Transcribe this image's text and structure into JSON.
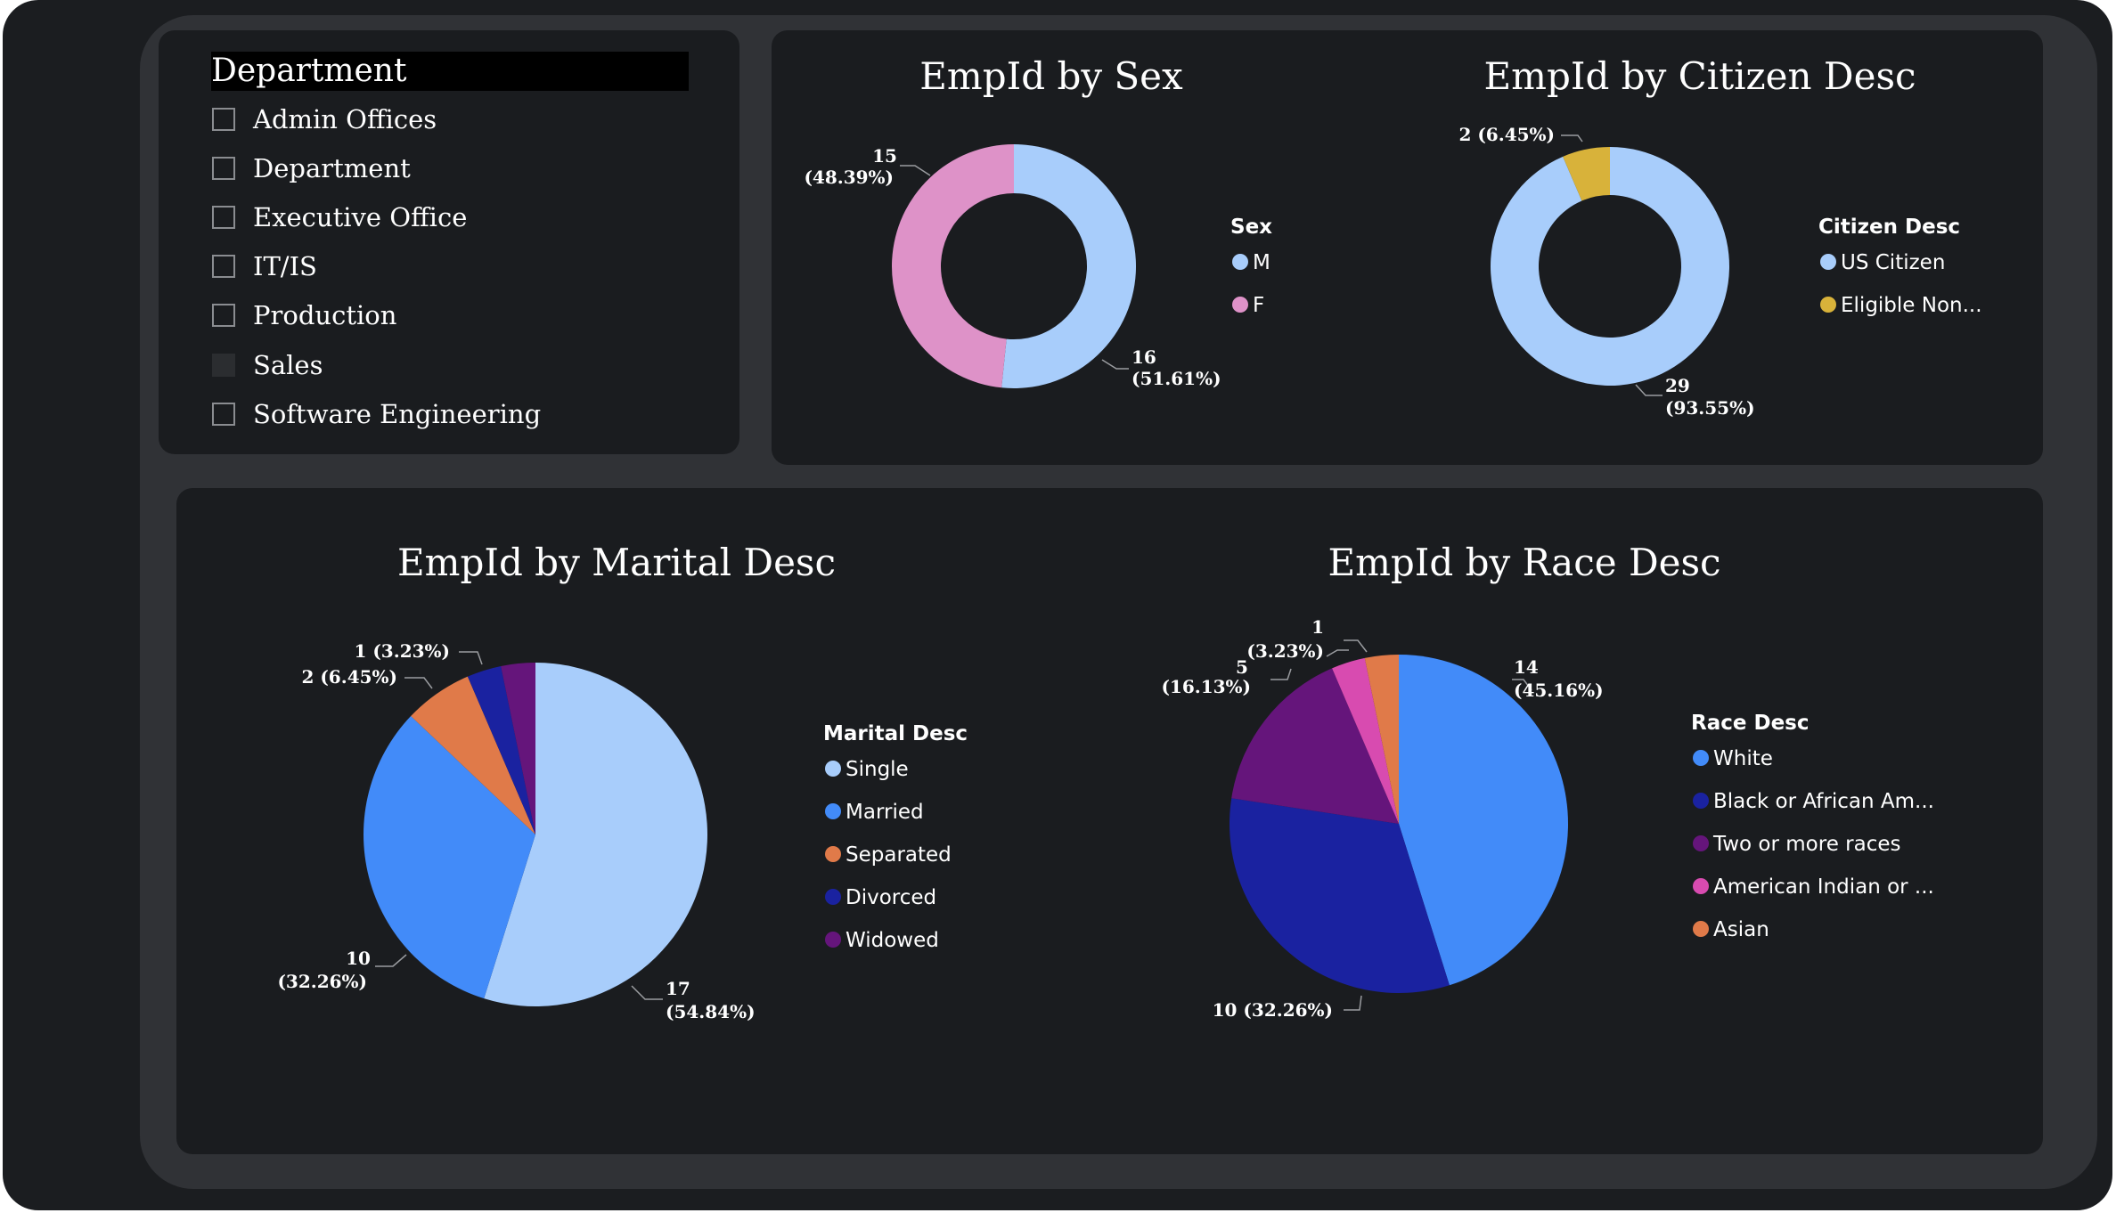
{
  "slicer": {
    "title": "Department",
    "items": [
      {
        "label": "Admin Offices",
        "state": "unchecked"
      },
      {
        "label": "Department",
        "state": "unchecked"
      },
      {
        "label": "Executive Office",
        "state": "unchecked"
      },
      {
        "label": "IT/IS",
        "state": "unchecked"
      },
      {
        "label": "Production",
        "state": "unchecked"
      },
      {
        "label": "Sales",
        "state": "filled"
      },
      {
        "label": "Software Engineering",
        "state": "unchecked"
      }
    ]
  },
  "chart_data": [
    {
      "id": "sex",
      "type": "pie",
      "variant": "donut",
      "title": "EmpId by Sex",
      "legend_title": "Sex",
      "categories": [
        "M",
        "F"
      ],
      "values": [
        16,
        15
      ],
      "colors": [
        "#a8cdfb",
        "#de92c8"
      ],
      "data_labels": [
        [
          "16",
          "(51.61%)"
        ],
        [
          "15",
          "(48.39%)"
        ]
      ]
    },
    {
      "id": "citizen",
      "type": "pie",
      "variant": "donut",
      "title": "EmpId by Citizen Desc",
      "legend_title": "Citizen Desc",
      "categories": [
        "US Citizen",
        "Eligible Non..."
      ],
      "values": [
        29,
        2
      ],
      "colors": [
        "#a8cdfb",
        "#d8b23a"
      ],
      "data_labels": [
        [
          "29",
          "(93.55%)"
        ],
        [
          "2 (6.45%)"
        ]
      ]
    },
    {
      "id": "marital",
      "type": "pie",
      "title": "EmpId by Marital Desc",
      "legend_title": "Marital Desc",
      "categories": [
        "Single",
        "Married",
        "Separated",
        "Divorced",
        "Widowed"
      ],
      "values": [
        17,
        10,
        2,
        1,
        1
      ],
      "colors": [
        "#a8cdfb",
        "#428bf9",
        "#e07a49",
        "#1a22a0",
        "#65157b"
      ],
      "data_labels": [
        [
          "17",
          "(54.84%)"
        ],
        [
          "10",
          "(32.26%)"
        ],
        [
          "2 (6.45%)"
        ],
        [
          "1 (3.23%)"
        ],
        []
      ]
    },
    {
      "id": "race",
      "type": "pie",
      "title": "EmpId by Race Desc",
      "legend_title": "Race Desc",
      "categories": [
        "White",
        "Black or African Am...",
        "Two or more races",
        "American Indian or ...",
        "Asian"
      ],
      "values": [
        14,
        10,
        5,
        1,
        1
      ],
      "colors": [
        "#428bf9",
        "#1a22a0",
        "#65157b",
        "#d84bb0",
        "#e07a49"
      ],
      "data_labels": [
        [
          "14",
          "(45.16%)"
        ],
        [
          "10 (32.26%)"
        ],
        [
          "5",
          "(16.13%)"
        ],
        [
          "(3.23%)"
        ],
        [
          "1"
        ]
      ]
    }
  ]
}
